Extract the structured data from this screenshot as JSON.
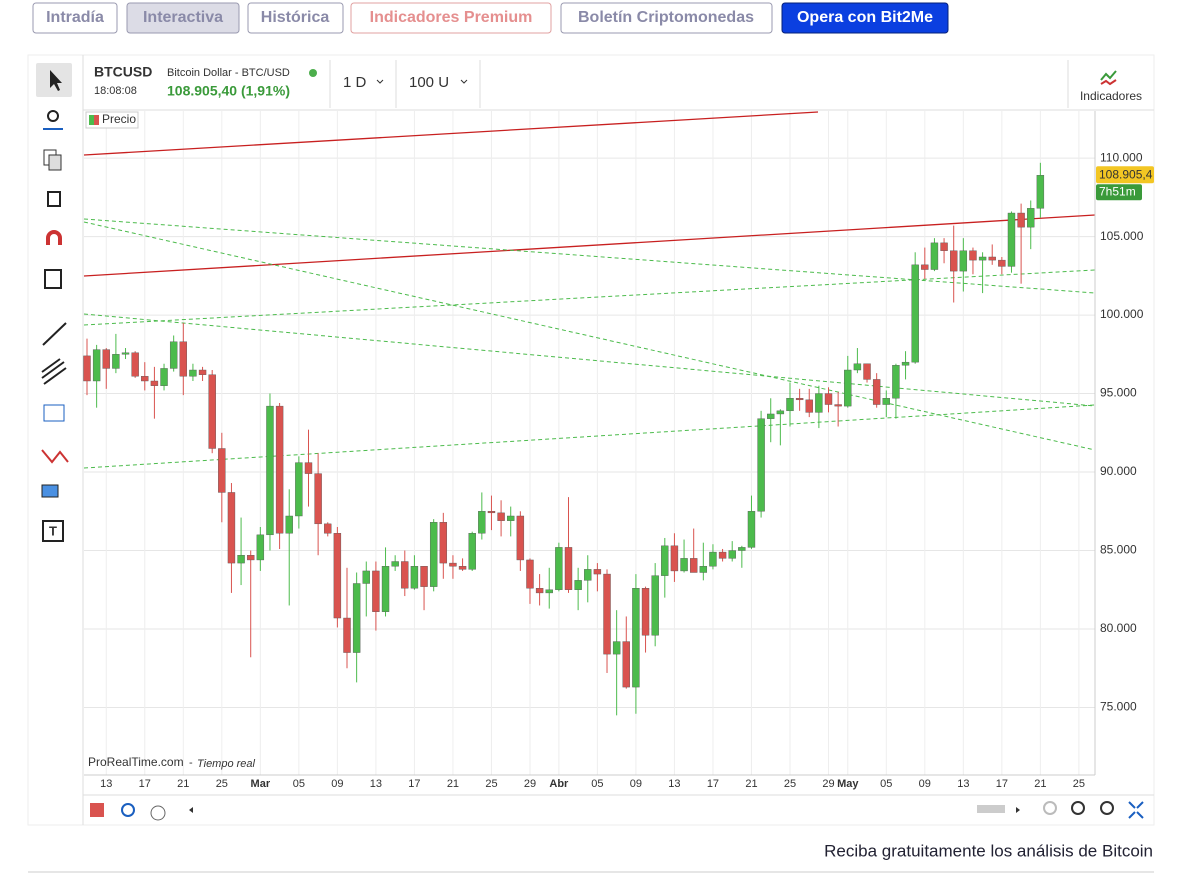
{
  "nav": [
    "Intradía",
    "Interactiva",
    "Histórica",
    "Indicadores Premium",
    "Boletín Criptomonedas",
    "Opera con Bit2Me"
  ],
  "header": {
    "symbol": "BTCUSD",
    "name": "Bitcoin Dollar - BTC/USD",
    "time": "18:08:08",
    "price": "108.905,40 (1,91%)",
    "period": "1 D",
    "units": "100 U",
    "indicators": "Indicadores"
  },
  "legend_label": "Precio",
  "source": "ProRealTime.com",
  "source_note": "Tiempo real",
  "footer": "Reciba gratuitamente los análisis de Bitcoin",
  "chart_data": {
    "type": "candlestick",
    "up_color": "#4cbb4c",
    "down_color": "#d9534f",
    "grid": true,
    "last_label": "108.905,4",
    "countdown": "7h51m",
    "ylim": [
      70700,
      113000
    ],
    "yticks": [
      {
        "value": 75000,
        "label": "75.000"
      },
      {
        "value": 80000,
        "label": "80.000"
      },
      {
        "value": 85000,
        "label": "85.000"
      },
      {
        "value": 90000,
        "label": "90.000"
      },
      {
        "value": 95000,
        "label": "95.000"
      },
      {
        "value": 100000,
        "label": "100.000"
      },
      {
        "value": 105000,
        "label": "105.000"
      },
      {
        "value": 110000,
        "label": "110.000"
      }
    ],
    "categories": [
      null,
      null,
      "13",
      null,
      null,
      null,
      "17",
      null,
      null,
      null,
      "21",
      null,
      null,
      null,
      "25",
      null,
      null,
      null,
      "Mar",
      null,
      null,
      null,
      "05",
      null,
      null,
      null,
      "09",
      null,
      null,
      null,
      "13",
      null,
      null,
      null,
      "17",
      null,
      null,
      null,
      "21",
      null,
      null,
      null,
      "25",
      null,
      null,
      null,
      "29",
      null,
      null,
      "Abr",
      null,
      null,
      null,
      "05",
      null,
      null,
      null,
      "09",
      null,
      null,
      null,
      "13",
      null,
      null,
      null,
      "17",
      null,
      null,
      null,
      "21",
      null,
      null,
      null,
      "25",
      null,
      null,
      null,
      "29",
      null,
      "May",
      null,
      null,
      null,
      "05",
      null,
      null,
      null,
      "09",
      null,
      null,
      null,
      "13",
      null,
      null,
      null,
      "17",
      null,
      null,
      null,
      "21",
      null,
      null,
      null,
      "25",
      null
    ],
    "open": [
      97400,
      95800,
      97800,
      96600,
      97500,
      97600,
      96100,
      95800,
      95500,
      96600,
      98300,
      96100,
      96500,
      96200,
      91500,
      88700,
      84200,
      84700,
      84400,
      86000,
      94200,
      86100,
      87200,
      90600,
      89900,
      86700,
      86100,
      80700,
      78500,
      82900,
      83700,
      81100,
      84000,
      84300,
      82600,
      84000,
      82700,
      86800,
      84200,
      84000,
      83800,
      86100,
      87500,
      87400,
      86900,
      87200,
      84400,
      82600,
      82300,
      82500,
      85200,
      82500,
      83100,
      83800,
      83500,
      78400,
      79200,
      76300,
      82600,
      79600,
      83400,
      85300,
      83700,
      84500,
      83600,
      84000,
      84900,
      84500,
      85000,
      85200,
      87500,
      93400,
      93700,
      93900,
      94700,
      94600,
      93800,
      95000,
      94300,
      94200,
      96500,
      96900,
      95900,
      94300,
      94700,
      96800,
      97000,
      103200,
      102900,
      104600,
      104100,
      102800,
      104100,
      103500,
      103700,
      103500,
      103100,
      106500,
      105600,
      106800,
      null,
      null,
      null,
      null,
      null
    ],
    "high": [
      98500,
      98100,
      97900,
      98800,
      97900,
      97700,
      97000,
      96700,
      96900,
      98700,
      99500,
      96900,
      96700,
      96500,
      92500,
      89300,
      87100,
      85000,
      86500,
      95000,
      94400,
      88900,
      91000,
      92700,
      91200,
      86800,
      86500,
      83900,
      83600,
      84300,
      84300,
      85200,
      84700,
      85000,
      84700,
      84000,
      87000,
      87400,
      84700,
      84500,
      86200,
      88700,
      88500,
      88200,
      87800,
      87500,
      84500,
      83500,
      83900,
      85500,
      88400,
      83900,
      84700,
      84200,
      83800,
      81200,
      80800,
      83500,
      82700,
      84200,
      85800,
      86100,
      85700,
      86400,
      85500,
      85400,
      85100,
      85600,
      85300,
      88500,
      93900,
      94700,
      94000,
      95700,
      95300,
      95300,
      95500,
      95400,
      95100,
      97400,
      97900,
      96900,
      96300,
      95200,
      96900,
      97700,
      104000,
      104300,
      104900,
      104900,
      105700,
      104900,
      104300,
      104000,
      104500,
      103700,
      106600,
      107100,
      107300,
      109700,
      null,
      null,
      null,
      null,
      null
    ],
    "low": [
      94900,
      94100,
      95300,
      96300,
      97200,
      96000,
      95200,
      93400,
      95200,
      96400,
      94900,
      95800,
      95800,
      91200,
      86800,
      82300,
      82800,
      78200,
      83700,
      85000,
      85100,
      81500,
      86400,
      87800,
      84700,
      85900,
      80100,
      77500,
      76600,
      80800,
      79900,
      80800,
      83700,
      82100,
      82500,
      81200,
      82400,
      83200,
      83200,
      83700,
      83700,
      85700,
      86300,
      85900,
      85900,
      83700,
      81600,
      81500,
      81300,
      82400,
      82300,
      81200,
      81700,
      82400,
      77200,
      74500,
      76200,
      74600,
      78500,
      78900,
      82000,
      83000,
      83600,
      83600,
      83100,
      83800,
      84300,
      84300,
      83900,
      85100,
      87100,
      91900,
      91700,
      92900,
      93900,
      93500,
      92800,
      93800,
      92900,
      94100,
      96300,
      95700,
      94100,
      93500,
      93400,
      95900,
      96900,
      102300,
      102800,
      103300,
      100800,
      101500,
      102600,
      101400,
      103200,
      102600,
      102700,
      102000,
      104200,
      106200,
      null,
      null,
      null,
      null,
      null
    ],
    "close": [
      95800,
      97800,
      96600,
      97500,
      97600,
      96100,
      95800,
      95500,
      96600,
      98300,
      96100,
      96500,
      96200,
      91500,
      88700,
      84200,
      84700,
      84400,
      86000,
      94200,
      86100,
      87200,
      90600,
      89900,
      86700,
      86100,
      80700,
      78500,
      82900,
      83700,
      81100,
      84000,
      84300,
      82600,
      84000,
      82700,
      86800,
      84200,
      84000,
      83800,
      86100,
      87500,
      87400,
      86900,
      87200,
      84400,
      82600,
      82300,
      82500,
      85200,
      82500,
      83100,
      83800,
      83500,
      78400,
      79200,
      76300,
      82600,
      79600,
      83400,
      85300,
      83700,
      84500,
      83600,
      84000,
      84900,
      84500,
      85000,
      85200,
      87500,
      93400,
      93700,
      93900,
      94700,
      94600,
      93800,
      95000,
      94300,
      94200,
      96500,
      96900,
      95900,
      94300,
      94700,
      96800,
      97000,
      103200,
      102900,
      104600,
      104100,
      102800,
      104100,
      103500,
      103700,
      103500,
      103100,
      106500,
      105600,
      106800,
      108905.4,
      null,
      null,
      null,
      null,
      null
    ]
  }
}
